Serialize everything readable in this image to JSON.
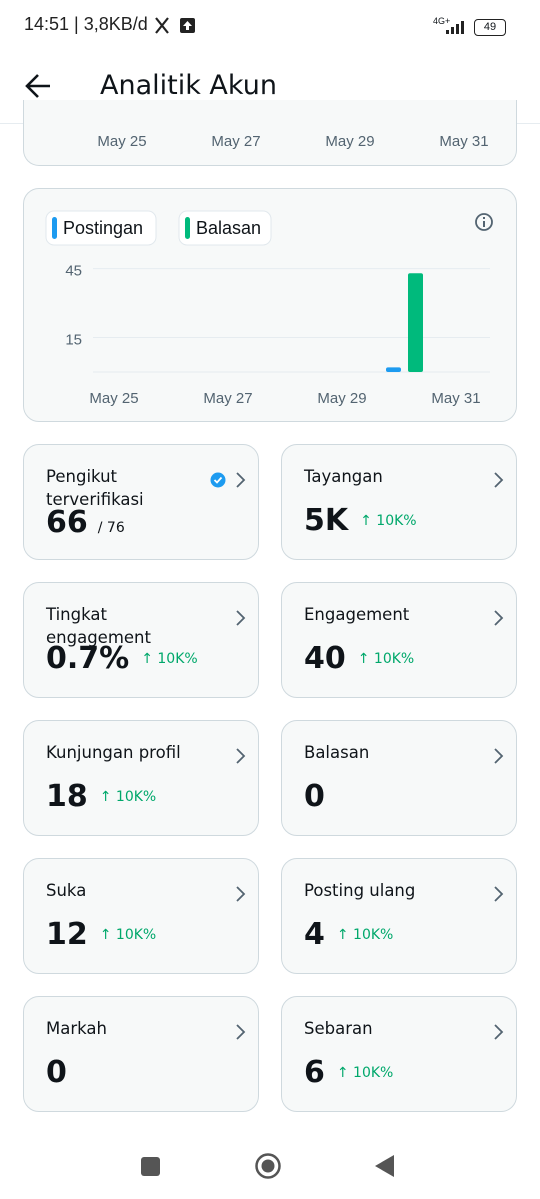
{
  "status_bar": {
    "time_data": "14:51 | 3,8KB/d",
    "network": "4G+",
    "battery": "49"
  },
  "header": {
    "title": "Analitik Akun"
  },
  "top_card": {
    "x_labels": [
      "May 25",
      "May 27",
      "May 29",
      "May 31"
    ]
  },
  "chart": {
    "type": "bar",
    "categories": [
      "May 25",
      null,
      "May 27",
      null,
      "May 29",
      null,
      "May 31"
    ],
    "series": [
      {
        "name": "Postingan",
        "color": "#1d9bf0",
        "values": [
          0,
          0,
          0,
          0,
          0,
          2,
          0
        ]
      },
      {
        "name": "Balasan",
        "color": "#00ba7c",
        "values": [
          0,
          0,
          0,
          0,
          0,
          43,
          0
        ]
      }
    ],
    "ylim": [
      0,
      47
    ],
    "yticks": [
      15,
      45
    ],
    "grid": true
  },
  "metrics": [
    {
      "title": "Pengikut terverifikasi",
      "value": "66",
      "total": "/ 76"
    },
    {
      "title": "Tayangan",
      "value": "5K",
      "change": "↑ 10K%"
    },
    {
      "title": "Tingkat engagement",
      "value": "0.7%",
      "change": "↑ 10K%"
    },
    {
      "title": "Engagement",
      "value": "40",
      "change": "↑ 10K%"
    },
    {
      "title": "Kunjungan profil",
      "value": "18",
      "change": "↑ 10K%"
    },
    {
      "title": "Balasan",
      "value": "0"
    },
    {
      "title": "Suka",
      "value": "12",
      "change": "↑ 10K%"
    },
    {
      "title": "Posting ulang",
      "value": "4",
      "change": "↑ 10K%"
    },
    {
      "title": "Markah",
      "value": "0"
    },
    {
      "title": "Sebaran",
      "value": "6",
      "change": "↑ 10K%"
    }
  ]
}
